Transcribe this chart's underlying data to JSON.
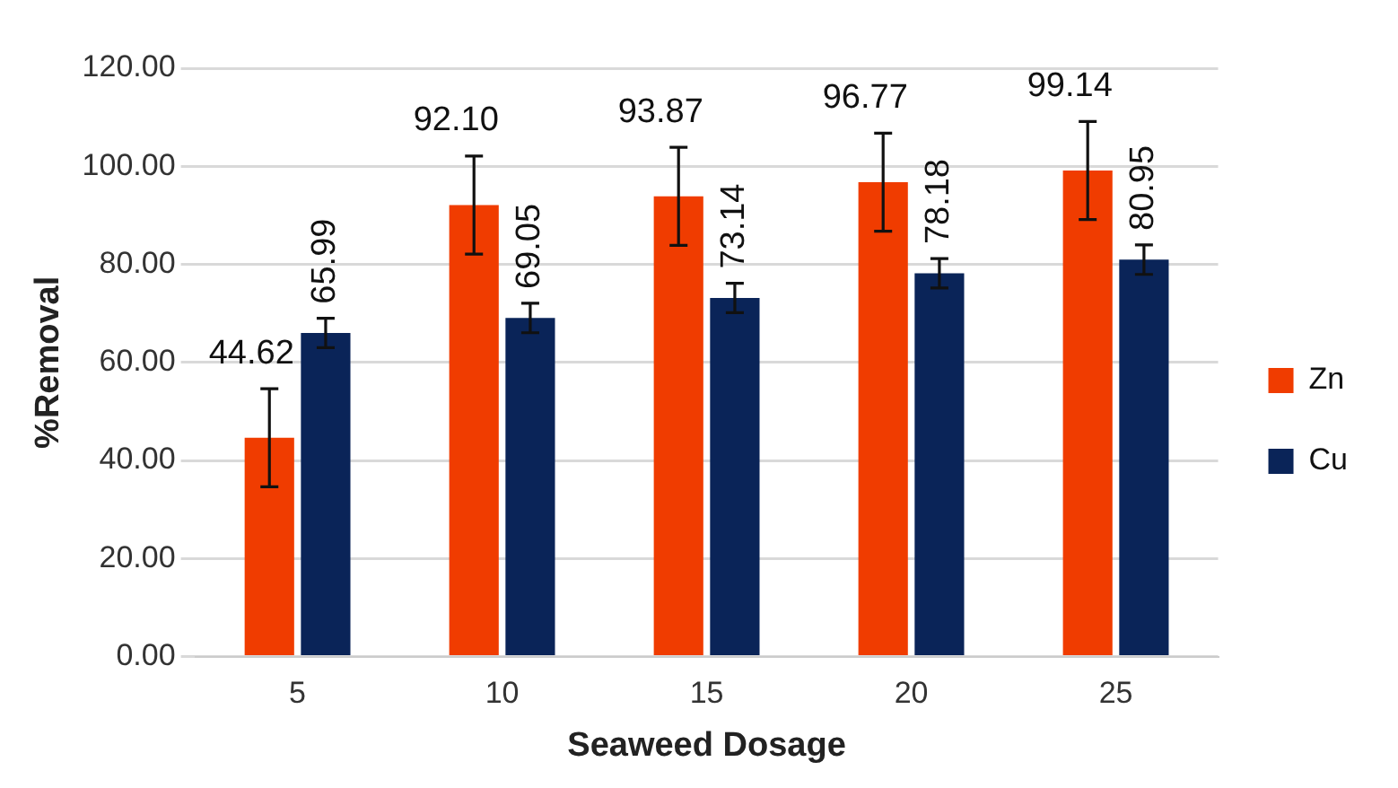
{
  "chart_data": {
    "type": "bar",
    "xlabel": "Seaweed Dosage",
    "ylabel": "%Removal",
    "categories": [
      "5",
      "10",
      "15",
      "20",
      "25"
    ],
    "series": [
      {
        "name": "Zn",
        "color": "#f03c00",
        "values": [
          44.62,
          92.1,
          93.87,
          96.77,
          99.14
        ],
        "errors": [
          10,
          10,
          10,
          10,
          10
        ],
        "value_labels": [
          "44.62",
          "92.10",
          "93.87",
          "96.77",
          "99.14"
        ]
      },
      {
        "name": "Cu",
        "color": "#0a2458",
        "values": [
          65.99,
          69.05,
          73.14,
          78.18,
          80.95
        ],
        "errors": [
          3,
          3,
          3,
          3,
          3
        ],
        "value_labels": [
          "65.99",
          "69.05",
          "73.14",
          "78.18",
          "80.95"
        ]
      }
    ],
    "ylim": [
      0,
      120
    ],
    "yticks": [
      {
        "value": 0,
        "label": "0.00"
      },
      {
        "value": 20,
        "label": "20.00"
      },
      {
        "value": 40,
        "label": "40.00"
      },
      {
        "value": 60,
        "label": "60.00"
      },
      {
        "value": 80,
        "label": "80.00"
      },
      {
        "value": 100,
        "label": "100.00"
      },
      {
        "value": 120,
        "label": "120.00"
      }
    ],
    "grid": "y",
    "legend": "right"
  }
}
